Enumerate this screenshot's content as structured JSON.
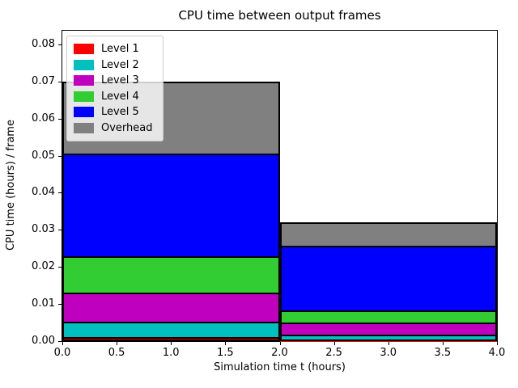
{
  "chart_data": {
    "type": "bar",
    "stacked": true,
    "title": "CPU time between output frames",
    "xlabel": "Simulation time t (hours)",
    "ylabel": "CPU time (hours) / frame",
    "x_tick_labels": [
      "0.0",
      "0.5",
      "1.0",
      "1.5",
      "2.0",
      "2.5",
      "3.0",
      "3.5",
      "4.0"
    ],
    "y_tick_labels": [
      "0.00",
      "0.01",
      "0.02",
      "0.03",
      "0.04",
      "0.05",
      "0.06",
      "0.07",
      "0.08"
    ],
    "xlim": [
      0.0,
      4.0
    ],
    "ylim": [
      0.0,
      0.0837
    ],
    "grid": false,
    "legend_position": "upper left",
    "axis_color": "#000000",
    "bar_edge_color": "#000000",
    "bars": [
      {
        "x_start": 0.0,
        "x_end": 2.0
      },
      {
        "x_start": 2.0,
        "x_end": 4.0
      }
    ],
    "series": [
      {
        "name": "Level 1",
        "color": "#ff0000",
        "values": [
          0.0009,
          0.0001
        ]
      },
      {
        "name": "Level 2",
        "color": "#00bfbf",
        "values": [
          0.0041,
          0.0015
        ]
      },
      {
        "name": "Level 3",
        "color": "#bf00bf",
        "values": [
          0.0078,
          0.0032
        ]
      },
      {
        "name": "Level 4",
        "color": "#32cd32",
        "values": [
          0.0098,
          0.0032
        ]
      },
      {
        "name": "Level 5",
        "color": "#0000ff",
        "values": [
          0.0278,
          0.0174
        ]
      },
      {
        "name": "Overhead",
        "color": "#808080",
        "values": [
          0.0196,
          0.0067
        ]
      }
    ],
    "bar_totals": [
      0.07,
      0.0321
    ]
  }
}
